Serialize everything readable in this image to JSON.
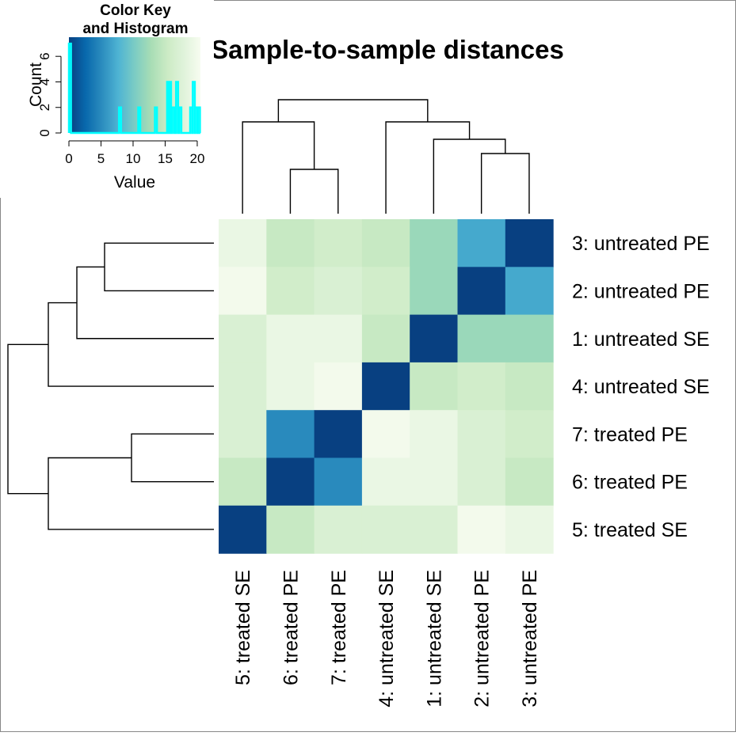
{
  "chart_data": {
    "type": "heatmap",
    "title": "Sample-to-sample distances",
    "rows": [
      "3: untreated PE",
      "2: untreated PE",
      "1: untreated SE",
      "4: untreated SE",
      "7: treated PE",
      "6: treated PE",
      "5: treated SE"
    ],
    "columns": [
      "5: treated SE",
      "6: treated PE",
      "7: treated PE",
      "4: untreated SE",
      "1: untreated SE",
      "2: untreated PE",
      "3: untreated PE"
    ],
    "values": [
      [
        19,
        15,
        16,
        15,
        12,
        7,
        0
      ],
      [
        20,
        16,
        17,
        16,
        12,
        0,
        7
      ],
      [
        17,
        19,
        19,
        15,
        0,
        12,
        12
      ],
      [
        17,
        19,
        20,
        0,
        15,
        16,
        15
      ],
      [
        17,
        5,
        0,
        20,
        19,
        17,
        16
      ],
      [
        15,
        0,
        5,
        19,
        19,
        17,
        15
      ],
      [
        0,
        15,
        17,
        17,
        17,
        20,
        19
      ]
    ],
    "colorscale": [
      "#084081",
      "#0868ac",
      "#2b8cbe",
      "#4eb3d3",
      "#7bccc4",
      "#a8ddb5",
      "#ccebc5",
      "#e0f3db",
      "#f7fcf0"
    ],
    "color_key": {
      "title_line1": "Color Key",
      "title_line2": "and Histogram",
      "xlabel": "Value",
      "ylabel": "Count",
      "x_ticks": [
        "0",
        "5",
        "10",
        "15",
        "20"
      ],
      "y_ticks": [
        "0",
        "2",
        "4",
        "6"
      ],
      "xlim": [
        0,
        20.5
      ],
      "ylim": [
        0,
        7.5
      ],
      "histogram_color": "#00ffff",
      "histogram_bins": [
        {
          "x": 0,
          "count": 7
        },
        {
          "x": 7.8,
          "count": 2
        },
        {
          "x": 10.8,
          "count": 2
        },
        {
          "x": 13.4,
          "count": 2
        },
        {
          "x": 15.3,
          "count": 4
        },
        {
          "x": 15.6,
          "count": 4
        },
        {
          "x": 16.1,
          "count": 2
        },
        {
          "x": 16.7,
          "count": 4
        },
        {
          "x": 17.2,
          "count": 2
        },
        {
          "x": 18.9,
          "count": 2
        },
        {
          "x": 19.3,
          "count": 4
        },
        {
          "x": 19.7,
          "count": 2
        },
        {
          "x": 20.1,
          "count": 2
        }
      ]
    }
  }
}
